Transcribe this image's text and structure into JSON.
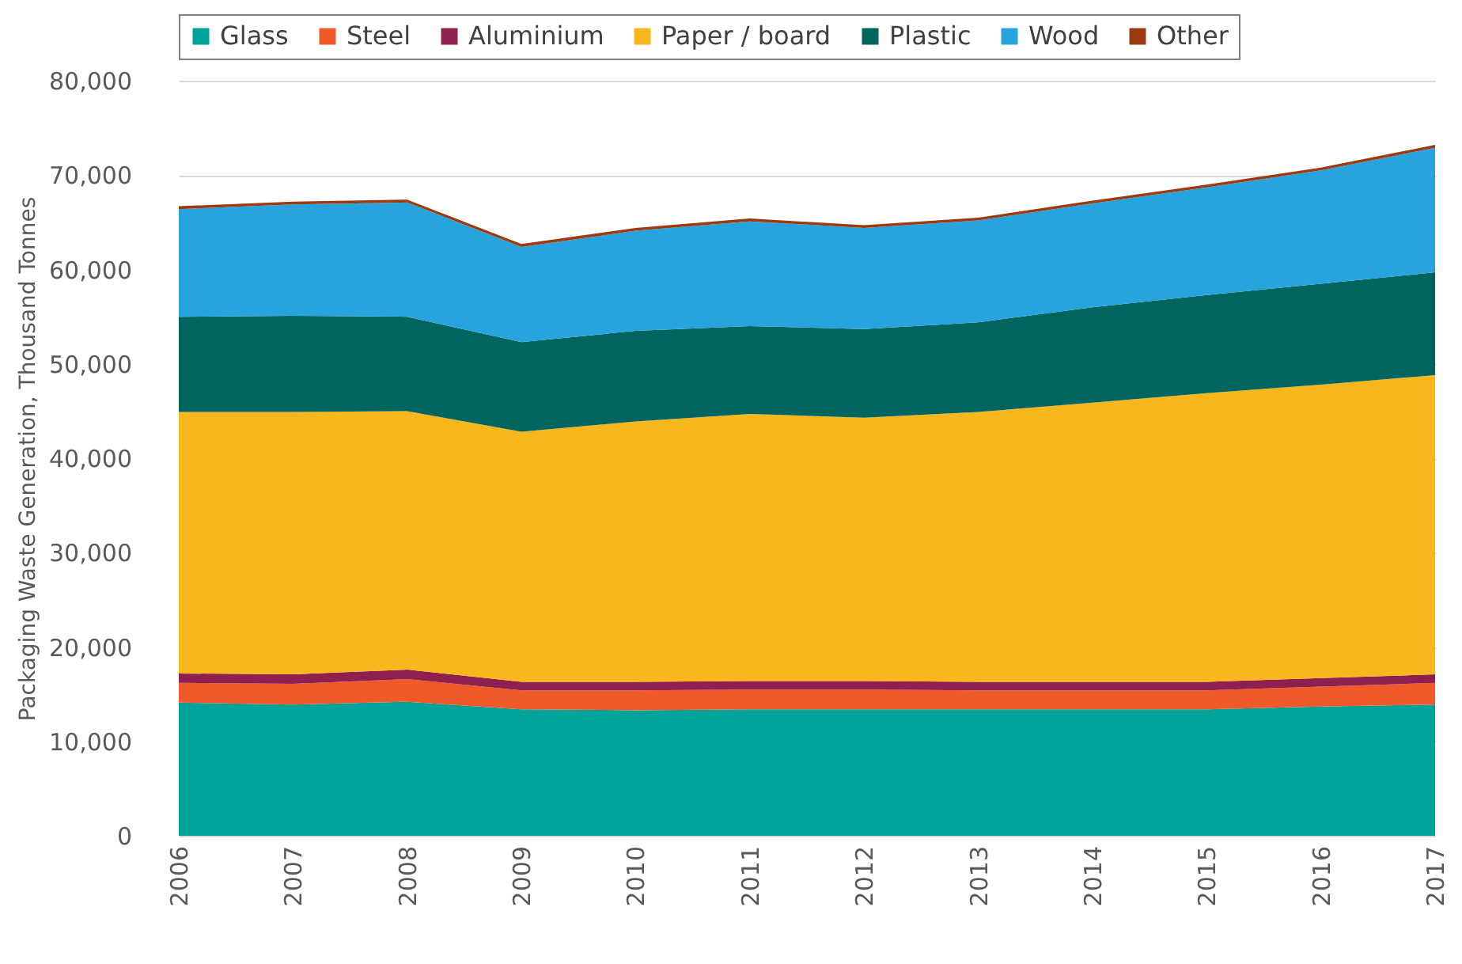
{
  "chart_data": {
    "type": "area",
    "stacked": true,
    "ylabel": "Packaging Waste Generation, Thousand Tonnes",
    "categories": [
      "2006",
      "2007",
      "2008",
      "2009",
      "2010",
      "2011",
      "2012",
      "2013",
      "2014",
      "2015",
      "2016",
      "2017"
    ],
    "series": [
      {
        "name": "Glass",
        "color": "#00a39a",
        "values": [
          14100,
          13900,
          14200,
          13400,
          13300,
          13400,
          13400,
          13400,
          13400,
          13400,
          13700,
          13900
        ]
      },
      {
        "name": "Steel",
        "color": "#ef5a28",
        "values": [
          2100,
          2200,
          2400,
          2000,
          2100,
          2100,
          2100,
          2000,
          2000,
          2000,
          2100,
          2300
        ]
      },
      {
        "name": "Aluminium",
        "color": "#8e1f4f",
        "values": [
          1000,
          1000,
          1000,
          900,
          900,
          900,
          900,
          900,
          900,
          900,
          900,
          900
        ]
      },
      {
        "name": "Paper / board",
        "color": "#f7b71d",
        "values": [
          27700,
          27800,
          27400,
          26500,
          27600,
          28300,
          27900,
          28600,
          29600,
          30600,
          31100,
          31700
        ]
      },
      {
        "name": "Plastic",
        "color": "#00655e",
        "values": [
          10100,
          10200,
          10000,
          9500,
          9600,
          9300,
          9400,
          9500,
          10100,
          10400,
          10700,
          10900
        ]
      },
      {
        "name": "Wood",
        "color": "#27a4dd",
        "values": [
          11400,
          11800,
          12100,
          10100,
          10600,
          11100,
          10700,
          10800,
          11000,
          11400,
          12000,
          13200
        ]
      },
      {
        "name": "Other",
        "color": "#9c3a12",
        "values": [
          300,
          300,
          300,
          300,
          300,
          300,
          300,
          300,
          300,
          300,
          300,
          300
        ]
      }
    ],
    "ylim": [
      0,
      80000
    ],
    "yticks": [
      0,
      {
        "value": 10000,
        "label": "10,000"
      },
      {
        "value": 20000,
        "label": "20,000"
      },
      {
        "value": 30000,
        "label": "30,000"
      },
      {
        "value": 40000,
        "label": "40,000"
      },
      {
        "value": 50000,
        "label": "50,000"
      },
      {
        "value": 60000,
        "label": "60,000"
      },
      {
        "value": 70000,
        "label": "70,000"
      },
      {
        "value": 80000,
        "label": "80,000"
      }
    ],
    "grid": "y",
    "legend": "top"
  }
}
